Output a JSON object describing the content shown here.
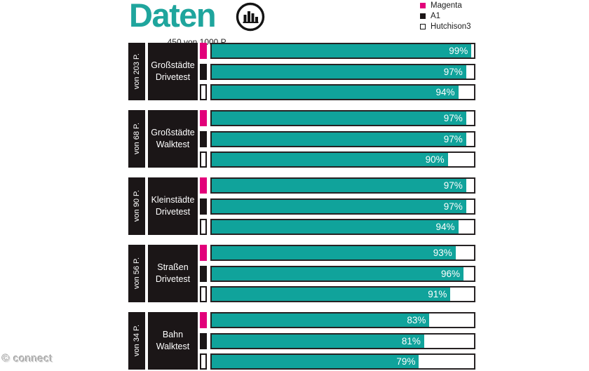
{
  "header": {
    "title": "Daten",
    "subtitle": "450 von 1000 P.",
    "icon": "bar-chart-circle-icon"
  },
  "legend": {
    "items": [
      {
        "label": "Magenta",
        "color": "#E2007A",
        "filled": true
      },
      {
        "label": "A1",
        "color": "#1B1617",
        "filled": true
      },
      {
        "label": "Hutchison3",
        "color": "#FFFFFF",
        "filled": false
      }
    ]
  },
  "watermark": "© connect",
  "colors": {
    "bar_fill": "#10A39B",
    "title_teal": "#1FA59D",
    "magenta": "#E2007A",
    "box_black": "#1B1617",
    "track_border": "#262223"
  },
  "chart_data": {
    "type": "bar",
    "orientation": "horizontal",
    "title": "Daten",
    "subtitle": "450 von 1000 P.",
    "unit": "%",
    "xlim": [
      0,
      100
    ],
    "legend_position": "top-right",
    "series": [
      "Magenta",
      "A1",
      "Hutchison3"
    ],
    "groups": [
      {
        "points": "von 203 P.",
        "category": "Großstädte\nDrivetest",
        "values": [
          99,
          97,
          94
        ],
        "labels": [
          "99%",
          "97%",
          "94%"
        ]
      },
      {
        "points": "von 68 P.",
        "category": "Großstädte\nWalktest",
        "values": [
          97,
          97,
          90
        ],
        "labels": [
          "97%",
          "97%",
          "90%"
        ]
      },
      {
        "points": "von 90 P.",
        "category": "Kleinstädte\nDrivetest",
        "values": [
          97,
          97,
          94
        ],
        "labels": [
          "97%",
          "97%",
          "94%"
        ]
      },
      {
        "points": "von 56 P.",
        "category": "Straßen\nDrivetest",
        "values": [
          93,
          96,
          91
        ],
        "labels": [
          "93%",
          "96%",
          "91%"
        ]
      },
      {
        "points": "von 34 P.",
        "category": "Bahn\nWalktest",
        "values": [
          83,
          81,
          79
        ],
        "labels": [
          "83%",
          "81%",
          "79%"
        ]
      }
    ]
  }
}
